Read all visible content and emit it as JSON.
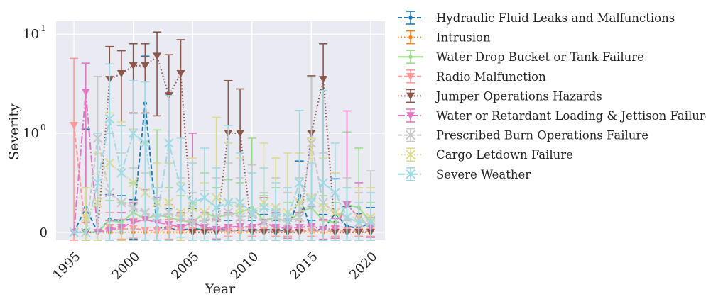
{
  "chart_data": {
    "type": "line",
    "xlabel": "Year",
    "ylabel": "Severity",
    "yscale": "symlog",
    "xlim": [
      1993.5,
      2021.2
    ],
    "ylim": [
      -0.08,
      13.5
    ],
    "xticks": [
      1995,
      2000,
      2005,
      2010,
      2015,
      2020
    ],
    "xtick_labels": [
      "1995",
      "2000",
      "2005",
      "2010",
      "2015",
      "2020"
    ],
    "yticks": [
      0,
      1,
      10
    ],
    "ytick_labels": {
      "zero": "0",
      "base": "10",
      "exp0": "0",
      "exp1": "1"
    },
    "grid": true,
    "error_bars": true,
    "legend_position": "outside-right",
    "x": [
      1995,
      1996,
      1997,
      1998,
      1999,
      2000,
      2001,
      2002,
      2003,
      2004,
      2005,
      2006,
      2007,
      2008,
      2009,
      2010,
      2011,
      2012,
      2013,
      2014,
      2015,
      2016,
      2017,
      2018,
      2019,
      2020
    ],
    "series": [
      {
        "name": "Hydraulic Fluid Leaks and Malfunctions",
        "color": "#1f77b4",
        "marker": "circle",
        "dash": "6,3",
        "values": [
          0,
          0.25,
          0,
          0.13,
          0.12,
          0.13,
          2.0,
          0.05,
          0.04,
          0.02,
          0.04,
          0.02,
          0.03,
          0.02,
          0.02,
          0.02,
          0.03,
          0.02,
          0.02,
          0.37,
          0.02,
          0.03,
          0.19,
          0.06,
          0.04,
          0.1
        ],
        "err": [
          0,
          0.85,
          0,
          0.25,
          0.25,
          0.2,
          4.0,
          0.3,
          0.2,
          0.1,
          0.2,
          0.1,
          0.1,
          0.1,
          0.1,
          0.1,
          0.15,
          0.1,
          0.1,
          0.35,
          0.1,
          0.15,
          0.35,
          0.2,
          0.15,
          0.15
        ]
      },
      {
        "name": "Intrusion",
        "color": "#ff7f0e",
        "marker": "circle",
        "dash": "1.5,3",
        "values": [
          0,
          0,
          0,
          0,
          0,
          0,
          0,
          0,
          0,
          0,
          0,
          0,
          0,
          0,
          0,
          0,
          0,
          0,
          0,
          0,
          0,
          0,
          0,
          0,
          0,
          0
        ],
        "err": [
          0,
          0,
          0,
          0,
          0,
          0,
          0,
          0,
          0,
          0,
          0,
          0,
          0,
          0,
          0,
          0,
          0,
          0,
          0,
          0,
          0,
          0,
          0,
          0,
          0,
          0
        ]
      },
      {
        "name": "Water Drop Bucket or Tank Failure",
        "color": "#98df8a",
        "marker": "circle",
        "dash": "",
        "values": [
          0,
          0,
          0,
          0.12,
          0.1,
          0.2,
          0.13,
          0.18,
          0.15,
          0.12,
          0.1,
          0.2,
          0.15,
          0.18,
          0.2,
          0.25,
          0.12,
          0.15,
          0.1,
          0.2,
          0.25,
          0.12,
          0.1,
          0.28,
          0.25,
          0.1
        ],
        "err": [
          0,
          0,
          0,
          0.2,
          0.2,
          0.3,
          0.3,
          0.9,
          0.3,
          0.25,
          0.2,
          0.4,
          0.3,
          0.35,
          0.3,
          0.7,
          0.25,
          0.3,
          0.2,
          0.35,
          0.8,
          0.25,
          0.2,
          0.75,
          0.6,
          0.2
        ]
      },
      {
        "name": "Radio Malfunction",
        "color": "#ff9896",
        "marker": "triangle-down",
        "dash": "6,3",
        "values": [
          1.2,
          0,
          0,
          0.05,
          0.03,
          0.04,
          0.02,
          0.02,
          0.03,
          0.02,
          0.02,
          0.02,
          0.02,
          0.01,
          0.02,
          0.01,
          0.02,
          0.01,
          0.01,
          0.02,
          0.01,
          0.02,
          0.01,
          0.02,
          0.01,
          0.01
        ],
        "err": [
          4.5,
          0,
          0,
          0.15,
          0.1,
          0.1,
          0.1,
          0.1,
          0.1,
          0.1,
          0.1,
          0.1,
          0.1,
          0.05,
          0.1,
          0.05,
          0.1,
          0.05,
          0.05,
          0.1,
          0.05,
          0.1,
          0.05,
          0.1,
          0.05,
          0.05
        ]
      },
      {
        "name": "Jumper Operations Hazards",
        "color": "#8c564b",
        "marker": "triangle-down",
        "dash": "1.5,3",
        "values": [
          0,
          0,
          0,
          3.5,
          4.0,
          4.8,
          4.8,
          6.0,
          2.4,
          4.0,
          0,
          0,
          0,
          1.0,
          1.0,
          0,
          0,
          0,
          0,
          0,
          1.0,
          3.5,
          0,
          0,
          0,
          0
        ],
        "err": [
          0,
          0,
          0,
          4.0,
          2.8,
          3.2,
          3.2,
          4.5,
          3.8,
          4.8,
          0,
          0,
          0,
          2.4,
          1.8,
          0,
          0,
          0,
          0,
          0,
          2.8,
          4.5,
          0,
          0,
          0,
          0
        ]
      },
      {
        "name": "Water or Retardant Loading & Jettison Failure",
        "color": "#e377c2",
        "marker": "triangle-down",
        "dash": "10,3,2,3",
        "values": [
          0,
          2.6,
          0,
          0.02,
          0.05,
          0.1,
          0.13,
          0.1,
          0.08,
          0.05,
          0.1,
          0.05,
          0.03,
          0.05,
          0.06,
          0.05,
          0.1,
          0.05,
          0.04,
          0.05,
          0.06,
          0.03,
          0.04,
          0.28,
          0.15,
          0.05
        ],
        "err": [
          0,
          2.5,
          0,
          0.1,
          0.15,
          0.2,
          0.3,
          0.25,
          0.2,
          0.15,
          0.9,
          0.15,
          0.1,
          0.15,
          0.2,
          0.15,
          0.25,
          0.15,
          0.1,
          0.15,
          0.2,
          0.1,
          0.1,
          1.4,
          0.35,
          0.1
        ]
      },
      {
        "name": "Prescribed Burn Operations Failure",
        "color": "#c7c7c7",
        "marker": "x",
        "dash": "6,3",
        "values": [
          0,
          0,
          0.95,
          0.4,
          0.3,
          0.25,
          0.2,
          0.15,
          0.2,
          0.15,
          0.1,
          0.12,
          0.15,
          0.2,
          0.15,
          0.18,
          0.1,
          0.15,
          0.1,
          0.15,
          0.9,
          0.3,
          0.2,
          0.15,
          0.1,
          0.12
        ],
        "err": [
          0,
          0,
          2.8,
          0.6,
          0.5,
          0.4,
          0.4,
          0.3,
          0.5,
          0.4,
          0.3,
          0.3,
          0.4,
          0.5,
          0.4,
          0.5,
          0.3,
          0.4,
          0.3,
          0.4,
          2.8,
          0.5,
          0.4,
          0.4,
          0.3,
          0.5
        ]
      },
      {
        "name": "Cargo Letdown Failure",
        "color": "#dbdb8d",
        "marker": "x",
        "dash": "1.5,3",
        "values": [
          0,
          0.15,
          0.3,
          0.7,
          0.6,
          0.5,
          0.4,
          0.3,
          0.3,
          0.2,
          0.25,
          0.2,
          0.35,
          0.3,
          0.25,
          0.2,
          0.3,
          0.25,
          0.2,
          0.3,
          0.35,
          0.25,
          0.2,
          0.15,
          0.15,
          0.15
        ],
        "err": [
          0,
          0.3,
          0.5,
          0.9,
          0.7,
          0.6,
          0.5,
          0.4,
          0.4,
          0.3,
          0.5,
          0.3,
          1.1,
          0.6,
          0.5,
          0.4,
          0.6,
          0.5,
          0.6,
          0.5,
          0.6,
          0.5,
          0.4,
          0.3,
          0.3,
          0.3
        ]
      },
      {
        "name": "Severe Weather",
        "color": "#9edae5",
        "marker": "x",
        "dash": "10,3,2,3",
        "values": [
          0,
          0,
          0.5,
          1.4,
          0.6,
          1.0,
          0.9,
          0.15,
          0.9,
          0.45,
          0.3,
          0.35,
          0.25,
          0.3,
          0.3,
          0.2,
          0.25,
          0.2,
          0.15,
          0.5,
          0.3,
          0.5,
          0.4,
          0.15,
          0.1,
          0.1
        ],
        "err": [
          0,
          0,
          0.5,
          3.6,
          0.6,
          2.4,
          2.4,
          0.3,
          1.5,
          0.5,
          0.4,
          0.5,
          0.4,
          0.9,
          0.5,
          0.4,
          0.4,
          0.3,
          0.3,
          1.2,
          0.4,
          2.2,
          0.5,
          0.3,
          0.2,
          0.3
        ]
      }
    ]
  }
}
